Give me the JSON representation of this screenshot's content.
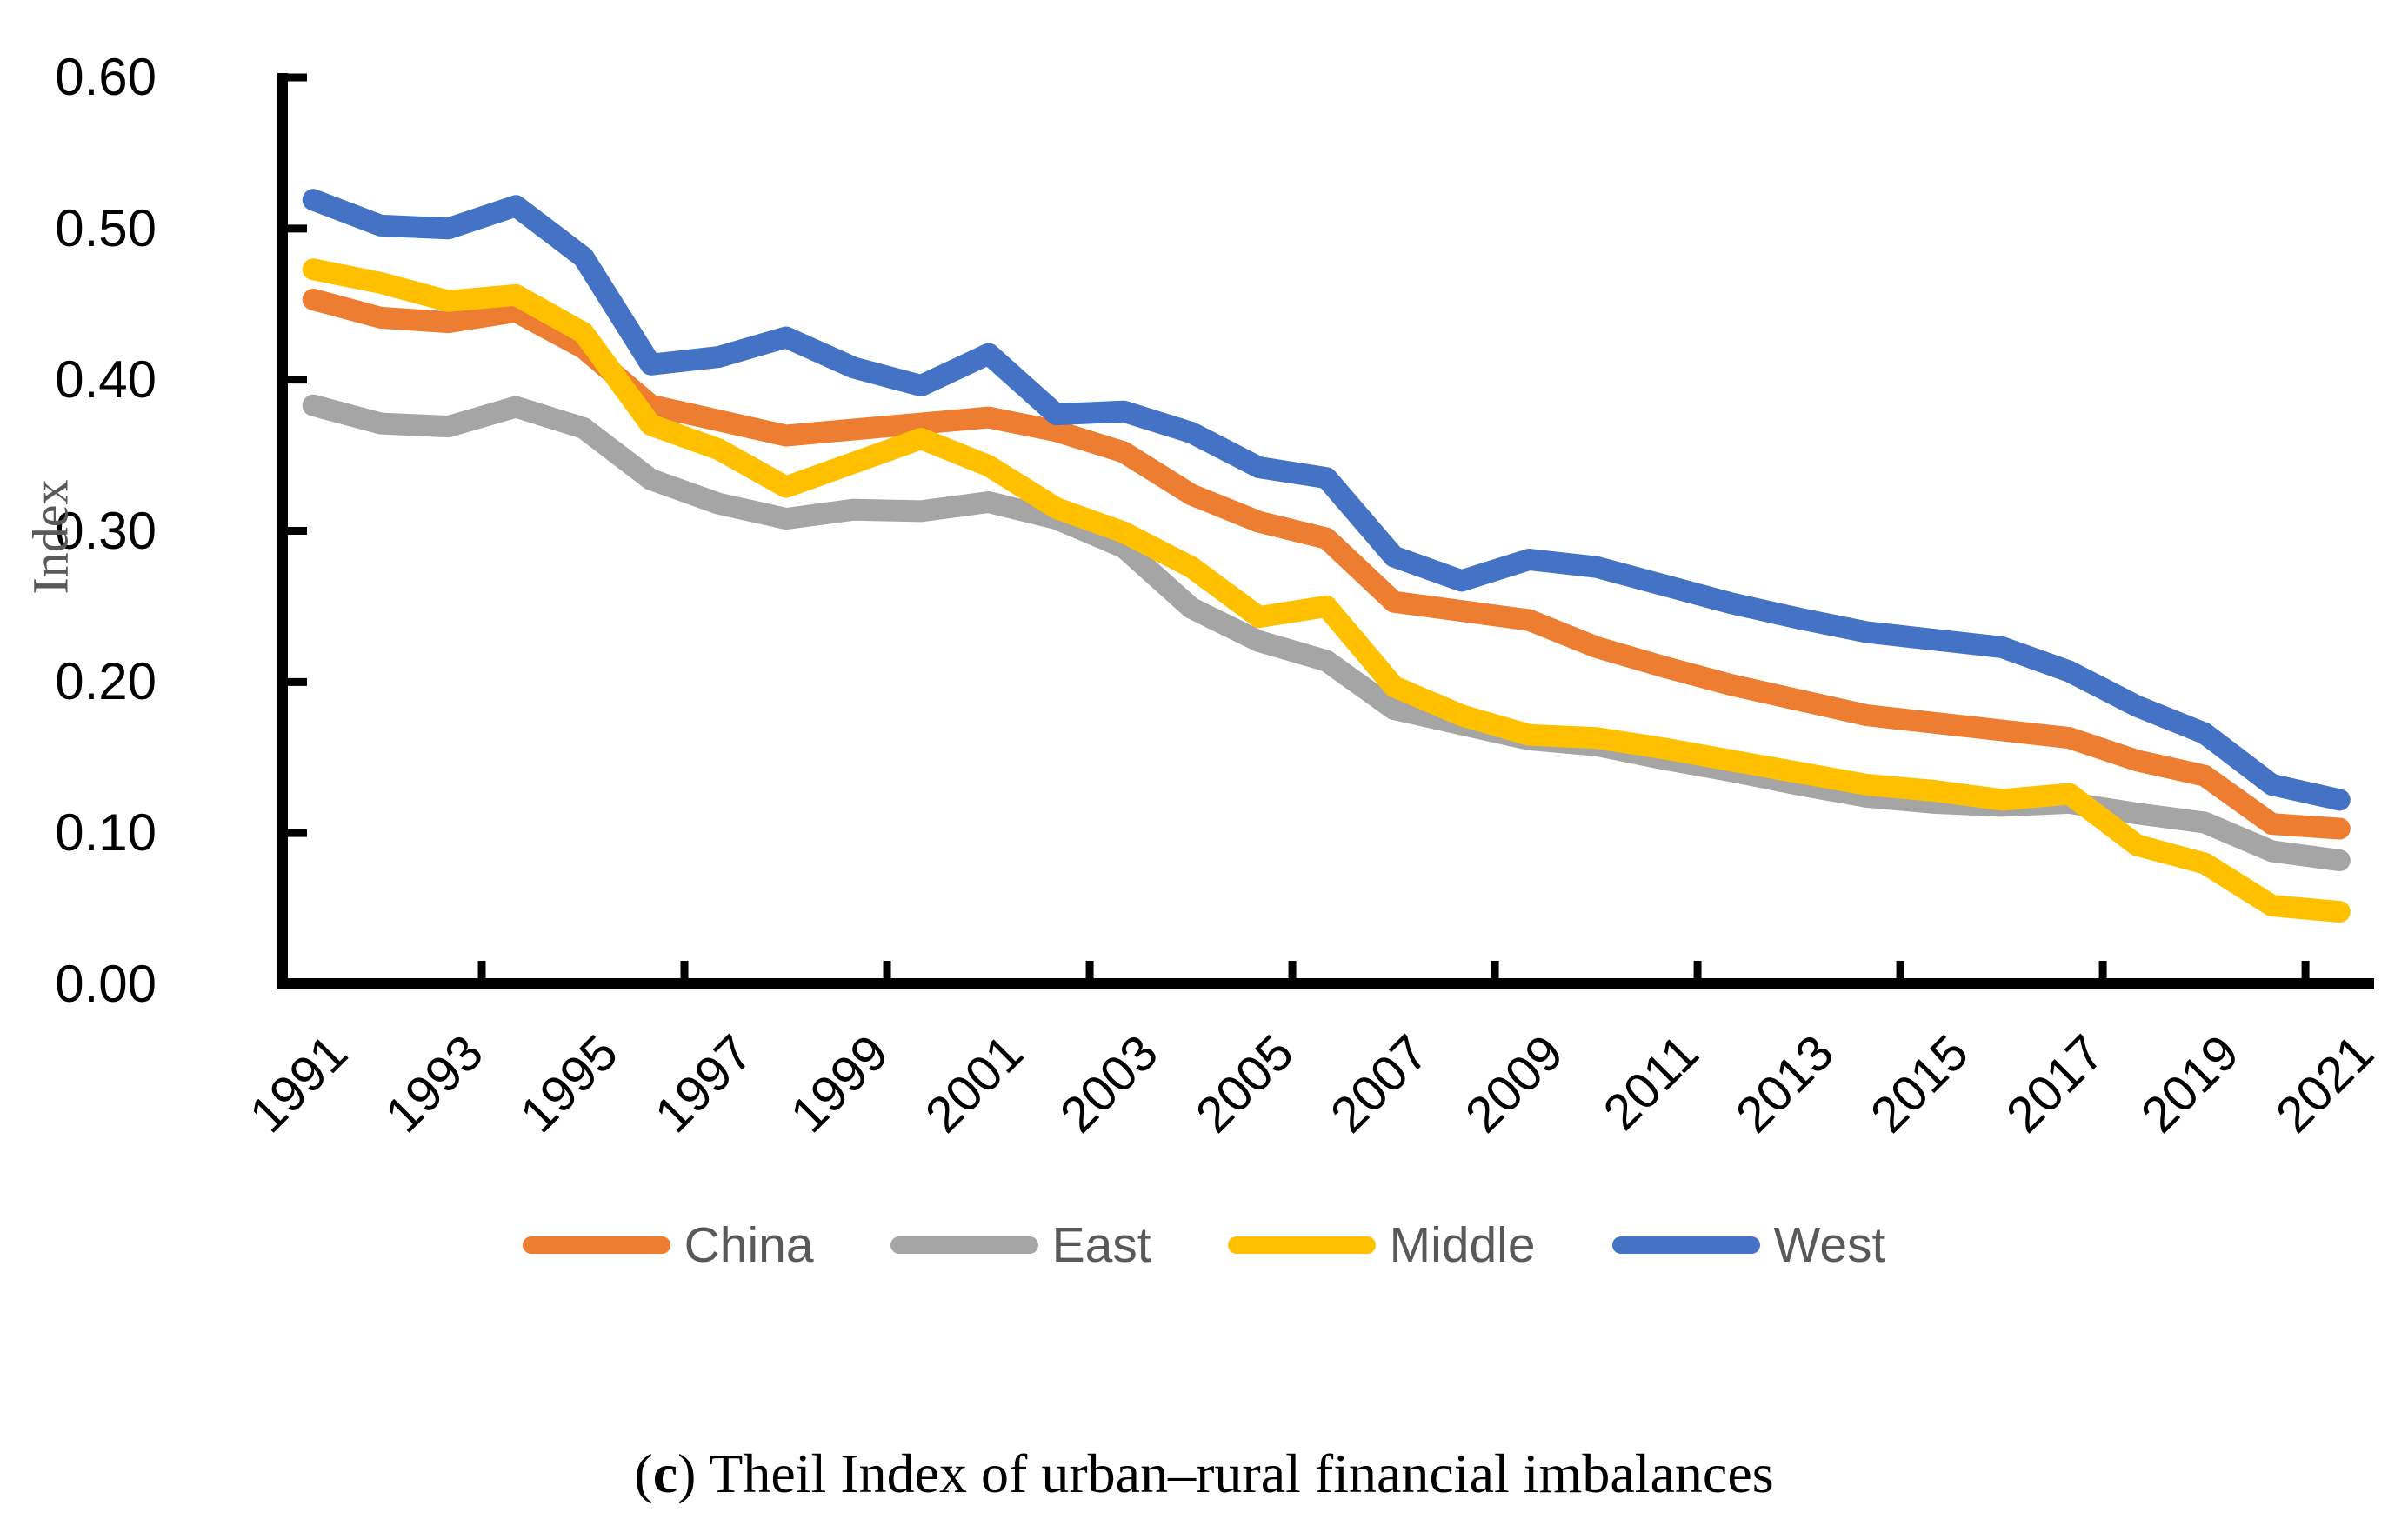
{
  "figure": {
    "y_axis_title": "Index",
    "caption": {
      "open": "(",
      "letter": "c",
      "close": ")",
      "text": " Theil Index of urban–rural financial imbalances"
    }
  },
  "chart_data": {
    "type": "line",
    "title": "",
    "xlabel": "",
    "ylabel": "Index",
    "ylim": [
      0.0,
      0.6
    ],
    "grid": false,
    "legend_position": "bottom",
    "y_tick_labels": [
      "0.00",
      "0.10",
      "0.20",
      "0.30",
      "0.40",
      "0.50",
      "0.60"
    ],
    "y_tick_values": [
      0.0,
      0.1,
      0.2,
      0.3,
      0.4,
      0.5,
      0.6
    ],
    "x": [
      1991,
      1992,
      1993,
      1994,
      1995,
      1996,
      1997,
      1998,
      1999,
      2000,
      2001,
      2002,
      2003,
      2004,
      2005,
      2006,
      2007,
      2008,
      2009,
      2010,
      2011,
      2012,
      2013,
      2014,
      2015,
      2016,
      2017,
      2018,
      2019,
      2020,
      2021
    ],
    "x_label_years": [
      1991,
      1993,
      1995,
      1997,
      1999,
      2001,
      2003,
      2005,
      2007,
      2009,
      2011,
      2013,
      2015,
      2017,
      2019,
      2021
    ],
    "x_boundary_tick_years": [
      1994,
      1997,
      2000,
      2003,
      2006,
      2009,
      2012,
      2015,
      2018,
      2021
    ],
    "series": [
      {
        "name": "China",
        "color": "#ED7D31",
        "values": [
          0.453,
          0.441,
          0.438,
          0.445,
          0.421,
          0.383,
          0.373,
          0.363,
          0.367,
          0.371,
          0.375,
          0.366,
          0.352,
          0.324,
          0.306,
          0.295,
          0.253,
          0.247,
          0.241,
          0.223,
          0.21,
          0.198,
          0.188,
          0.178,
          0.173,
          0.168,
          0.163,
          0.148,
          0.138,
          0.106,
          0.103
        ]
      },
      {
        "name": "East",
        "color": "#A5A5A5",
        "values": [
          0.383,
          0.371,
          0.369,
          0.382,
          0.368,
          0.334,
          0.318,
          0.308,
          0.314,
          0.313,
          0.319,
          0.308,
          0.289,
          0.249,
          0.227,
          0.214,
          0.182,
          0.172,
          0.162,
          0.158,
          0.149,
          0.141,
          0.132,
          0.124,
          0.12,
          0.118,
          0.12,
          0.113,
          0.107,
          0.088,
          0.082
        ]
      },
      {
        "name": "Middle",
        "color": "#FFC000",
        "values": [
          0.473,
          0.464,
          0.452,
          0.456,
          0.431,
          0.37,
          0.354,
          0.329,
          0.345,
          0.361,
          0.343,
          0.315,
          0.299,
          0.276,
          0.243,
          0.25,
          0.197,
          0.178,
          0.165,
          0.163,
          0.156,
          0.148,
          0.14,
          0.132,
          0.128,
          0.122,
          0.126,
          0.092,
          0.08,
          0.052,
          0.048
        ]
      },
      {
        "name": "West",
        "color": "#4472C4",
        "values": [
          0.519,
          0.502,
          0.5,
          0.515,
          0.481,
          0.41,
          0.415,
          0.428,
          0.408,
          0.396,
          0.417,
          0.377,
          0.379,
          0.365,
          0.342,
          0.335,
          0.283,
          0.267,
          0.281,
          0.276,
          0.264,
          0.252,
          0.242,
          0.233,
          0.228,
          0.223,
          0.207,
          0.184,
          0.166,
          0.132,
          0.122
        ]
      }
    ]
  }
}
